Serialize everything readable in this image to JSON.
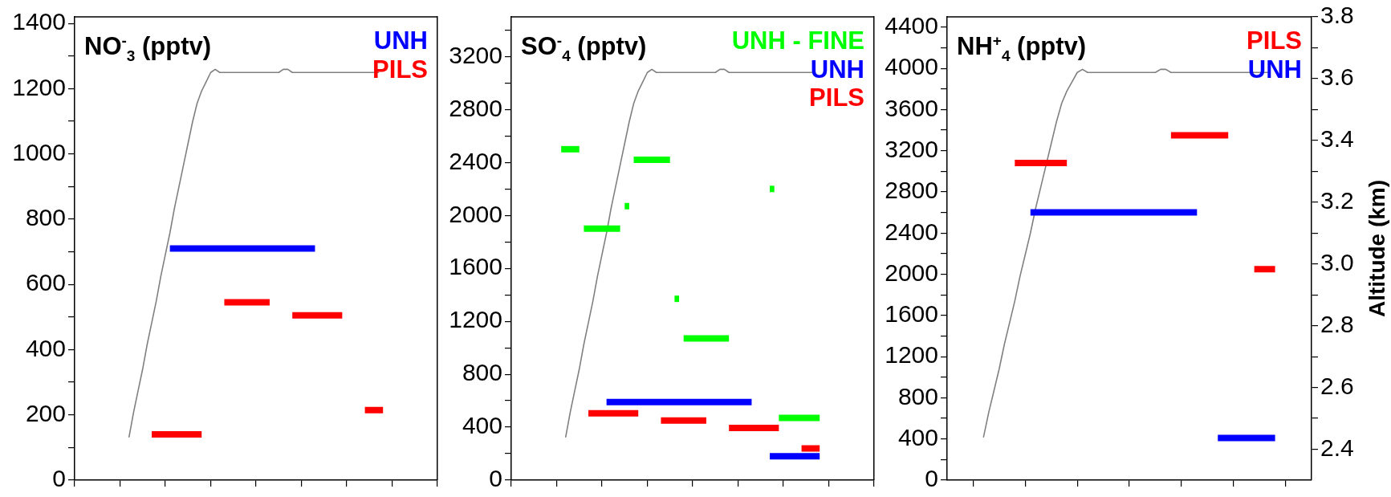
{
  "chart_data": [
    {
      "type": "line",
      "title": "NO$^{-}$$_{3}$ (pptv)",
      "legend": "top right",
      "tick_labels": "y",
      "categories": [
        null,
        null,
        null,
        null,
        null,
        null,
        null,
        null,
        null,
        null,
        null,
        null,
        null,
        null,
        null,
        null,
        null,
        null,
        null,
        null,
        null,
        null,
        null,
        null,
        null,
        null,
        null,
        null,
        null,
        null,
        null,
        null,
        null,
        null,
        null,
        null,
        null,
        null,
        null,
        null,
        null,
        null,
        null,
        null,
        null,
        null,
        null,
        null,
        null,
        null,
        null,
        null,
        null,
        null,
        null,
        null,
        null,
        null,
        null,
        null,
        null,
        null,
        null,
        null,
        null,
        null,
        null,
        null,
        null,
        null,
        null,
        null,
        null,
        null,
        null,
        null,
        null,
        null,
        null,
        null,
        null
      ],
      "ylim": [
        0,
        1420
      ],
      "yticks": [
        0,
        {
          "value": 100,
          "label": null
        },
        200,
        {
          "value": 300,
          "label": null
        },
        400,
        {
          "value": 500,
          "label": null
        },
        600,
        {
          "value": 700,
          "label": null
        },
        800,
        {
          "value": 900,
          "label": null
        },
        1000,
        {
          "value": 1100,
          "label": null
        },
        1200,
        {
          "value": 1300,
          "label": null
        },
        1400
      ],
      "y2lim": [
        2.3,
        3.8
      ],
      "series": [
        {
          "name": "UNH",
          "color": "#0000ff",
          "values": [
            null,
            null,
            null,
            null,
            null,
            null,
            null,
            null,
            null,
            null,
            null,
            null,
            null,
            null,
            null,
            null,
            null,
            null,
            null,
            null,
            null,
            710,
            710,
            710,
            710,
            710,
            710,
            710,
            710,
            710,
            710,
            710,
            710,
            710,
            710,
            710,
            710,
            710,
            710,
            710,
            710,
            710,
            710,
            710,
            710,
            710,
            710,
            710,
            710,
            710,
            710,
            710,
            710,
            710,
            null,
            null,
            null,
            null,
            null,
            null,
            null,
            null,
            null,
            null,
            null,
            null,
            null,
            null,
            null,
            null,
            null,
            null,
            null,
            null,
            null,
            null,
            null,
            null,
            null,
            null,
            null
          ]
        },
        {
          "name": "PILS",
          "color": "#ff0000",
          "values": [
            null,
            null,
            null,
            null,
            null,
            null,
            null,
            null,
            null,
            null,
            null,
            null,
            null,
            null,
            null,
            null,
            null,
            140,
            140,
            140,
            140,
            140,
            140,
            140,
            140,
            140,
            140,
            140,
            140,
            null,
            null,
            null,
            null,
            545,
            545,
            545,
            545,
            545,
            545,
            545,
            545,
            545,
            545,
            545,
            null,
            null,
            null,
            null,
            505,
            505,
            505,
            505,
            505,
            505,
            505,
            505,
            505,
            505,
            505,
            505,
            null,
            null,
            null,
            null,
            215,
            215,
            215,
            215,
            215,
            null,
            null,
            null,
            null,
            null,
            null,
            null,
            null,
            null,
            null,
            null,
            null
          ]
        },
        {
          "color": "#808080",
          "axis": "y2",
          "values": [
            null,
            null,
            null,
            null,
            null,
            null,
            null,
            null,
            null,
            null,
            null,
            null,
            2.44,
            2.52,
            2.59,
            2.66,
            2.74,
            2.81,
            2.88,
            2.96,
            3.03,
            3.1,
            3.18,
            3.25,
            3.32,
            3.39,
            3.46,
            3.52,
            3.56,
            3.59,
            3.62,
            3.63,
            3.62,
            3.62,
            3.62,
            3.62,
            3.62,
            3.62,
            3.62,
            3.62,
            3.62,
            3.62,
            3.62,
            3.62,
            3.62,
            3.62,
            3.63,
            3.63,
            3.62,
            3.62,
            3.62,
            3.62,
            3.62,
            3.62,
            3.62,
            3.62,
            3.62,
            3.62,
            3.62,
            3.62,
            3.62,
            3.62,
            3.62,
            3.62,
            3.62,
            3.62,
            3.62,
            3.62,
            null,
            null,
            null,
            null,
            null,
            null,
            null,
            null,
            null,
            null,
            null,
            null,
            null
          ]
        }
      ]
    },
    {
      "type": "line",
      "title": "SO$^{-}$$_{4}$ (pptv)",
      "legend": "top right",
      "tick_labels": "y",
      "categories": [
        null,
        null,
        null,
        null,
        null,
        null,
        null,
        null,
        null,
        null,
        null,
        null,
        null,
        null,
        null,
        null,
        null,
        null,
        null,
        null,
        null,
        null,
        null,
        null,
        null,
        null,
        null,
        null,
        null,
        null,
        null,
        null,
        null,
        null,
        null,
        null,
        null,
        null,
        null,
        null,
        null,
        null,
        null,
        null,
        null,
        null,
        null,
        null,
        null,
        null,
        null,
        null,
        null,
        null,
        null,
        null,
        null,
        null,
        null,
        null,
        null,
        null,
        null,
        null,
        null,
        null,
        null,
        null,
        null,
        null,
        null,
        null,
        null,
        null,
        null,
        null,
        null,
        null,
        null,
        null,
        null
      ],
      "ylim": [
        0,
        3500
      ],
      "yticks": [
        0,
        {
          "value": 200,
          "label": null
        },
        400,
        {
          "value": 600,
          "label": null
        },
        800,
        {
          "value": 1000,
          "label": null
        },
        1200,
        {
          "value": 1400,
          "label": null
        },
        1600,
        {
          "value": 1800,
          "label": null
        },
        2000,
        {
          "value": 2200,
          "label": null
        },
        2400,
        {
          "value": 2600,
          "label": null
        },
        2800,
        {
          "value": 3000,
          "label": null
        },
        3200,
        {
          "value": 3400,
          "label": null
        }
      ],
      "y2lim": [
        2.3,
        3.8
      ],
      "series": [
        {
          "name": "UNH - FINE",
          "color": "#00ff00",
          "values": [
            null,
            null,
            null,
            null,
            null,
            null,
            null,
            null,
            null,
            null,
            null,
            2500,
            2500,
            2500,
            2500,
            2500,
            null,
            null,
            null,
            null,
            null,
            null,
            null,
            null,
            null,
            null,
            null,
            null,
            null,
            null,
            null,
            null,
            null,
            null,
            null,
            null,
            null,
            null,
            null,
            null,
            null,
            null,
            null,
            null,
            null,
            null,
            null,
            null,
            null,
            null,
            null,
            null,
            null,
            null,
            null,
            null,
            null,
            null,
            null,
            null,
            null,
            null,
            null,
            null,
            null,
            null,
            null,
            null,
            null,
            null,
            null,
            null,
            null,
            null,
            null,
            null,
            null,
            null,
            null,
            null,
            null
          ]
        },
        {
          "color": "#00ff00",
          "values": [
            null,
            null,
            null,
            null,
            null,
            null,
            null,
            null,
            null,
            null,
            null,
            null,
            null,
            null,
            null,
            null,
            1900,
            1900,
            1900,
            1900,
            1900,
            1900,
            1900,
            1900,
            1900,
            null,
            null,
            null,
            null,
            null,
            null,
            null,
            null,
            null,
            null,
            null,
            null,
            null,
            null,
            null,
            null,
            null,
            null,
            null,
            null,
            null,
            null,
            null,
            null,
            null,
            null,
            null,
            null,
            null,
            null,
            null,
            null,
            null,
            null,
            null,
            null,
            null,
            null,
            null,
            null,
            null,
            null,
            null,
            null,
            null,
            null,
            null,
            null,
            null,
            null,
            null,
            null,
            null,
            null,
            null,
            null
          ]
        },
        {
          "color": "#00ff00",
          "values": [
            null,
            null,
            null,
            null,
            null,
            null,
            null,
            null,
            null,
            null,
            null,
            null,
            null,
            null,
            null,
            null,
            null,
            null,
            null,
            null,
            null,
            null,
            null,
            null,
            null,
            2070,
            2070,
            null,
            null,
            null,
            null,
            null,
            null,
            null,
            null,
            null,
            null,
            null,
            null,
            null,
            null,
            null,
            null,
            null,
            null,
            null,
            null,
            null,
            null,
            null,
            null,
            null,
            null,
            null,
            null,
            null,
            null,
            null,
            null,
            null,
            null,
            null,
            null,
            null,
            null,
            null,
            null,
            null,
            null,
            null,
            null,
            null,
            null,
            null,
            null,
            null,
            null,
            null,
            null,
            null,
            null
          ]
        },
        {
          "color": "#00ff00",
          "values": [
            null,
            null,
            null,
            null,
            null,
            null,
            null,
            null,
            null,
            null,
            null,
            null,
            null,
            null,
            null,
            null,
            null,
            null,
            null,
            null,
            null,
            null,
            null,
            null,
            null,
            null,
            null,
            2420,
            2420,
            2420,
            2420,
            2420,
            2420,
            2420,
            2420,
            2420,
            null,
            null,
            null,
            null,
            null,
            null,
            null,
            null,
            null,
            null,
            null,
            null,
            null,
            null,
            null,
            null,
            null,
            null,
            null,
            null,
            null,
            null,
            null,
            null,
            null,
            null,
            null,
            null,
            null,
            null,
            null,
            null,
            null,
            null,
            null,
            null,
            null,
            null,
            null,
            null,
            null,
            null,
            null,
            null,
            null
          ]
        },
        {
          "color": "#00ff00",
          "values": [
            null,
            null,
            null,
            null,
            null,
            null,
            null,
            null,
            null,
            null,
            null,
            null,
            null,
            null,
            null,
            null,
            null,
            null,
            null,
            null,
            null,
            null,
            null,
            null,
            null,
            null,
            null,
            null,
            null,
            null,
            null,
            null,
            null,
            null,
            null,
            null,
            1370,
            1370,
            null,
            null,
            null,
            null,
            null,
            null,
            null,
            null,
            null,
            null,
            null,
            null,
            null,
            null,
            null,
            null,
            null,
            null,
            null,
            null,
            null,
            null,
            null,
            null,
            null,
            null,
            null,
            null,
            null,
            null,
            null,
            null,
            null,
            null,
            null,
            null,
            null,
            null,
            null,
            null,
            null,
            null,
            null
          ]
        },
        {
          "color": "#00ff00",
          "values": [
            null,
            null,
            null,
            null,
            null,
            null,
            null,
            null,
            null,
            null,
            null,
            null,
            null,
            null,
            null,
            null,
            null,
            null,
            null,
            null,
            null,
            null,
            null,
            null,
            null,
            null,
            null,
            null,
            null,
            null,
            null,
            null,
            null,
            null,
            null,
            null,
            null,
            null,
            1070,
            1070,
            1070,
            1070,
            1070,
            1070,
            1070,
            1070,
            1070,
            1070,
            1070,
            null,
            null,
            null,
            null,
            null,
            null,
            null,
            null,
            null,
            null,
            null,
            null,
            null,
            null,
            null,
            null,
            null,
            null,
            null,
            null,
            null,
            null,
            null,
            null,
            null,
            null,
            null,
            null,
            null,
            null,
            null,
            null
          ]
        },
        {
          "color": "#00ff00",
          "values": [
            null,
            null,
            null,
            null,
            null,
            null,
            null,
            null,
            null,
            null,
            null,
            null,
            null,
            null,
            null,
            null,
            null,
            null,
            null,
            null,
            null,
            null,
            null,
            null,
            null,
            null,
            null,
            null,
            null,
            null,
            null,
            null,
            null,
            null,
            null,
            null,
            null,
            null,
            null,
            null,
            null,
            null,
            null,
            null,
            null,
            null,
            null,
            null,
            null,
            null,
            null,
            null,
            null,
            null,
            null,
            null,
            null,
            2200,
            2200,
            null,
            null,
            null,
            null,
            null,
            null,
            null,
            null,
            null,
            null,
            null,
            null,
            null,
            null,
            null,
            null,
            null,
            null,
            null,
            null,
            null,
            null
          ]
        },
        {
          "color": "#00ff00",
          "values": [
            null,
            null,
            null,
            null,
            null,
            null,
            null,
            null,
            null,
            null,
            null,
            null,
            null,
            null,
            null,
            null,
            null,
            null,
            null,
            null,
            null,
            null,
            null,
            null,
            null,
            null,
            null,
            null,
            null,
            null,
            null,
            null,
            null,
            null,
            null,
            null,
            null,
            null,
            null,
            null,
            null,
            null,
            null,
            null,
            null,
            null,
            null,
            null,
            null,
            null,
            null,
            null,
            null,
            null,
            null,
            null,
            null,
            null,
            null,
            470,
            470,
            470,
            470,
            470,
            470,
            470,
            470,
            470,
            470,
            null,
            null,
            null,
            null,
            null,
            null,
            null,
            null,
            null,
            null,
            null,
            null
          ]
        },
        {
          "name": "UNH",
          "color": "#0000ff",
          "values": [
            null,
            null,
            null,
            null,
            null,
            null,
            null,
            null,
            null,
            null,
            null,
            null,
            null,
            null,
            null,
            null,
            null,
            null,
            null,
            null,
            null,
            590,
            590,
            590,
            590,
            590,
            590,
            590,
            590,
            590,
            590,
            590,
            590,
            590,
            590,
            590,
            590,
            590,
            590,
            590,
            590,
            590,
            590,
            590,
            590,
            590,
            590,
            590,
            590,
            590,
            590,
            590,
            590,
            590,
            null,
            null,
            null,
            180,
            180,
            180,
            180,
            180,
            180,
            180,
            180,
            180,
            180,
            180,
            180,
            null,
            null,
            null,
            null,
            null,
            null,
            null,
            null,
            null,
            null,
            null,
            null
          ]
        },
        {
          "name": "PILS",
          "color": "#ff0000",
          "values": [
            null,
            null,
            null,
            null,
            null,
            null,
            null,
            null,
            null,
            null,
            null,
            null,
            null,
            null,
            null,
            null,
            null,
            505,
            505,
            505,
            505,
            505,
            505,
            505,
            505,
            505,
            505,
            505,
            505,
            null,
            null,
            null,
            null,
            450,
            450,
            450,
            450,
            450,
            450,
            450,
            450,
            450,
            450,
            450,
            null,
            null,
            null,
            null,
            395,
            395,
            395,
            395,
            395,
            395,
            395,
            395,
            395,
            395,
            395,
            395,
            null,
            null,
            null,
            null,
            240,
            240,
            240,
            240,
            240,
            null,
            null,
            null,
            null,
            null,
            null,
            null,
            null,
            null,
            null,
            null,
            null
          ]
        },
        {
          "color": "#808080",
          "axis": "y2",
          "values": [
            null,
            null,
            null,
            null,
            null,
            null,
            null,
            null,
            null,
            null,
            null,
            null,
            2.44,
            2.52,
            2.59,
            2.66,
            2.74,
            2.81,
            2.88,
            2.96,
            3.03,
            3.1,
            3.18,
            3.25,
            3.32,
            3.39,
            3.46,
            3.52,
            3.56,
            3.59,
            3.62,
            3.63,
            3.62,
            3.62,
            3.62,
            3.62,
            3.62,
            3.62,
            3.62,
            3.62,
            3.62,
            3.62,
            3.62,
            3.62,
            3.62,
            3.62,
            3.63,
            3.63,
            3.62,
            3.62,
            3.62,
            3.62,
            3.62,
            3.62,
            3.62,
            3.62,
            3.62,
            3.62,
            3.62,
            3.62,
            3.62,
            3.62,
            3.62,
            3.62,
            3.62,
            3.62,
            3.62,
            3.62,
            null,
            null,
            null,
            null,
            null,
            null,
            null,
            null,
            null,
            null,
            null,
            null,
            null
          ]
        }
      ]
    },
    {
      "type": "line",
      "title": "NH$^{+}$$_{4}$ (pptv)",
      "legend": "top right",
      "y2label": "Altitude (km)",
      "categories": [
        null,
        null,
        null,
        null,
        null,
        null,
        null,
        null,
        null,
        null,
        null,
        null,
        null,
        null,
        null,
        null,
        null,
        null,
        null,
        null,
        null,
        null,
        null,
        null,
        null,
        null,
        null,
        null,
        null,
        null,
        null,
        null,
        null,
        null,
        null,
        null,
        null,
        null,
        null,
        null,
        null,
        null,
        null,
        null,
        null,
        null,
        null,
        null,
        null,
        null,
        null,
        null,
        null,
        null,
        null,
        null,
        null,
        null,
        null,
        null,
        null,
        null,
        null,
        null,
        null,
        null,
        null,
        null,
        null,
        null,
        null
      ],
      "ylim": [
        0,
        4500
      ],
      "yticks": [
        0,
        {
          "value": 200,
          "label": null
        },
        400,
        {
          "value": 600,
          "label": null
        },
        800,
        {
          "value": 1000,
          "label": null
        },
        1200,
        {
          "value": 1400,
          "label": null
        },
        1600,
        {
          "value": 1800,
          "label": null
        },
        2000,
        {
          "value": 2200,
          "label": null
        },
        2400,
        {
          "value": 2600,
          "label": null
        },
        2800,
        {
          "value": 3000,
          "label": null
        },
        3200,
        {
          "value": 3400,
          "label": null
        },
        3600,
        {
          "value": 3800,
          "label": null
        },
        4000,
        {
          "value": 4200,
          "label": null
        },
        4400
      ],
      "y2lim": [
        2.3,
        3.8
      ],
      "y2ticks": [
        2.4,
        {
          "value": 2.5,
          "label": null
        },
        2.6,
        {
          "value": 2.7,
          "label": null
        },
        2.8,
        {
          "value": 2.9,
          "label": null
        },
        {
          "value": 3,
          "label": "3.0"
        },
        {
          "value": 3.1,
          "label": null
        },
        3.2,
        {
          "value": 3.3,
          "label": null
        },
        3.4,
        {
          "value": 3.5,
          "label": null
        },
        3.6,
        {
          "value": 3.7,
          "label": null
        },
        3.8
      ],
      "series": [
        {
          "name": "PILS",
          "color": "#ff0000",
          "values": [
            null,
            null,
            null,
            null,
            null,
            null,
            null,
            null,
            null,
            null,
            null,
            null,
            null,
            3080,
            3080,
            3080,
            3080,
            3080,
            3080,
            3080,
            3080,
            3080,
            3080,
            3080,
            null,
            null,
            null,
            null,
            null,
            null,
            null,
            null,
            null,
            null,
            null,
            null,
            null,
            null,
            null,
            null,
            null,
            null,
            null,
            3350,
            3350,
            3350,
            3350,
            3350,
            3350,
            3350,
            3350,
            3350,
            3350,
            3350,
            3350,
            null,
            null,
            null,
            null,
            2050,
            2050,
            2050,
            2050,
            2050,
            null,
            null,
            null,
            null,
            null,
            null,
            null
          ]
        },
        {
          "name": "UNH",
          "color": "#0000ff",
          "values": [
            null,
            null,
            null,
            null,
            null,
            null,
            null,
            null,
            null,
            null,
            null,
            null,
            null,
            null,
            null,
            null,
            2600,
            2600,
            2600,
            2600,
            2600,
            2600,
            2600,
            2600,
            2600,
            2600,
            2600,
            2600,
            2600,
            2600,
            2600,
            2600,
            2600,
            2600,
            2600,
            2600,
            2600,
            2600,
            2600,
            2600,
            2600,
            2600,
            2600,
            2600,
            2600,
            2600,
            2600,
            2600,
            2600,
            null,
            null,
            null,
            410,
            410,
            410,
            410,
            410,
            410,
            410,
            410,
            410,
            410,
            410,
            410,
            null,
            null,
            null,
            null,
            null,
            null,
            null
          ]
        },
        {
          "color": "#808080",
          "axis": "y2",
          "values": [
            null,
            null,
            null,
            null,
            null,
            null,
            null,
            2.44,
            2.52,
            2.59,
            2.66,
            2.74,
            2.81,
            2.88,
            2.96,
            3.03,
            3.1,
            3.18,
            3.25,
            3.32,
            3.39,
            3.46,
            3.52,
            3.56,
            3.59,
            3.62,
            3.63,
            3.62,
            3.62,
            3.62,
            3.62,
            3.62,
            3.62,
            3.62,
            3.62,
            3.62,
            3.62,
            3.62,
            3.62,
            3.62,
            3.62,
            3.63,
            3.63,
            3.62,
            3.62,
            3.62,
            3.62,
            3.62,
            3.62,
            3.62,
            3.62,
            3.62,
            3.62,
            3.62,
            3.62,
            3.62,
            3.62,
            3.62,
            3.62,
            3.62,
            3.62,
            3.62,
            3.62,
            null,
            null,
            null,
            null,
            null,
            null,
            null,
            null
          ]
        }
      ]
    }
  ]
}
